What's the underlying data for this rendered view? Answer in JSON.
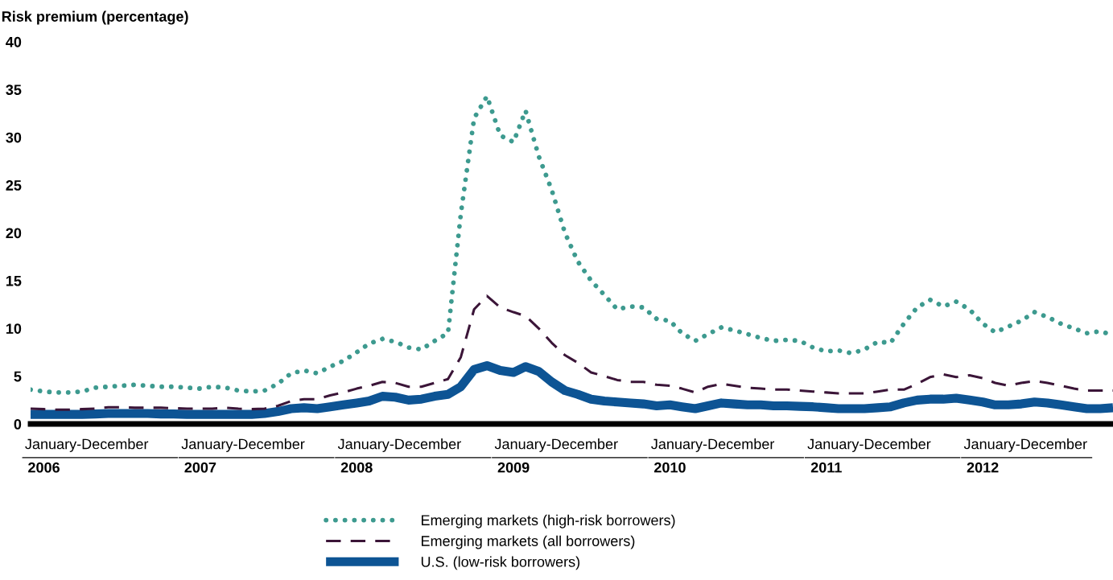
{
  "chart_data": {
    "type": "line",
    "ylabel": "Risk premium (percentage)",
    "x": [
      "2006-01",
      "2006-02",
      "2006-03",
      "2006-04",
      "2006-05",
      "2006-06",
      "2006-07",
      "2006-08",
      "2006-09",
      "2006-10",
      "2006-11",
      "2006-12",
      "2007-01",
      "2007-02",
      "2007-03",
      "2007-04",
      "2007-05",
      "2007-06",
      "2007-07",
      "2007-08",
      "2007-09",
      "2007-10",
      "2007-11",
      "2007-12",
      "2008-01",
      "2008-02",
      "2008-03",
      "2008-04",
      "2008-05",
      "2008-06",
      "2008-07",
      "2008-08",
      "2008-09",
      "2008-10",
      "2008-11",
      "2008-12",
      "2009-01",
      "2009-02",
      "2009-03",
      "2009-04",
      "2009-05",
      "2009-06",
      "2009-07",
      "2009-08",
      "2009-09",
      "2009-10",
      "2009-11",
      "2009-12",
      "2010-01",
      "2010-02",
      "2010-03",
      "2010-04",
      "2010-05",
      "2010-06",
      "2010-07",
      "2010-08",
      "2010-09",
      "2010-10",
      "2010-11",
      "2010-12",
      "2011-01",
      "2011-02",
      "2011-03",
      "2011-04",
      "2011-05",
      "2011-06",
      "2011-07",
      "2011-08",
      "2011-09",
      "2011-10",
      "2011-11",
      "2011-12",
      "2012-01",
      "2012-02",
      "2012-03",
      "2012-04",
      "2012-05",
      "2012-06",
      "2012-07",
      "2012-08",
      "2012-09",
      "2012-10",
      "2012-11",
      "2012-12"
    ],
    "series": [
      {
        "name": "Emerging markets (high-risk borrowers)",
        "color": "#3d9a8f",
        "line_style": "dotted",
        "values": [
          3.6,
          3.4,
          3.3,
          3.3,
          3.4,
          3.8,
          3.9,
          4.0,
          4.1,
          4.0,
          3.9,
          3.9,
          3.8,
          3.7,
          3.9,
          3.8,
          3.5,
          3.4,
          3.5,
          4.2,
          5.3,
          5.6,
          5.3,
          6.0,
          6.6,
          7.5,
          8.4,
          8.9,
          8.6,
          8.0,
          7.8,
          8.7,
          9.5,
          22,
          32,
          34.3,
          30.2,
          29.5,
          32.8,
          28,
          24.5,
          20,
          17,
          15,
          13.5,
          12,
          12.3,
          12.2,
          11,
          10.8,
          9.5,
          8.7,
          9.4,
          10.1,
          9.8,
          9.4,
          9.0,
          8.7,
          8.8,
          8.7,
          8.0,
          7.6,
          7.7,
          7.4,
          7.8,
          8.6,
          8.5,
          10.5,
          12.2,
          13.0,
          12.3,
          12.8,
          12.0,
          10.5,
          9.6,
          10.2,
          10.8,
          11.7,
          11.2,
          10.5,
          10.0,
          9.5,
          9.7,
          9.3
        ]
      },
      {
        "name": "Emerging markets (all borrowers)",
        "color": "#3b1538",
        "line_style": "dashed",
        "values": [
          1.6,
          1.55,
          1.5,
          1.5,
          1.55,
          1.6,
          1.75,
          1.75,
          1.7,
          1.7,
          1.7,
          1.65,
          1.6,
          1.6,
          1.6,
          1.7,
          1.6,
          1.55,
          1.6,
          1.9,
          2.4,
          2.6,
          2.6,
          3.0,
          3.3,
          3.7,
          4.0,
          4.4,
          4.3,
          3.9,
          3.9,
          4.3,
          4.7,
          7.0,
          12.0,
          13.4,
          12.2,
          11.7,
          11.3,
          10.0,
          8.5,
          7.2,
          6.4,
          5.4,
          5.0,
          4.6,
          4.4,
          4.4,
          4.1,
          4.0,
          3.7,
          3.3,
          3.9,
          4.2,
          4.0,
          3.8,
          3.7,
          3.6,
          3.6,
          3.5,
          3.4,
          3.3,
          3.2,
          3.2,
          3.2,
          3.4,
          3.6,
          3.6,
          4.2,
          4.9,
          5.2,
          4.9,
          5.1,
          4.8,
          4.3,
          4.0,
          4.3,
          4.5,
          4.3,
          4.0,
          3.7,
          3.5,
          3.5,
          3.5
        ]
      },
      {
        "name": "U.S. (low-risk borrowers)",
        "color": "#0d5494",
        "line_style": "solid",
        "values": [
          1.0,
          1.0,
          1.0,
          1.0,
          1.0,
          1.05,
          1.1,
          1.1,
          1.1,
          1.1,
          1.05,
          1.05,
          1.0,
          1.0,
          1.0,
          1.0,
          1.0,
          1.0,
          1.1,
          1.3,
          1.6,
          1.7,
          1.6,
          1.8,
          2.0,
          2.2,
          2.4,
          2.9,
          2.8,
          2.5,
          2.6,
          2.9,
          3.1,
          3.9,
          5.7,
          6.1,
          5.6,
          5.4,
          6.0,
          5.5,
          4.4,
          3.5,
          3.1,
          2.6,
          2.4,
          2.3,
          2.2,
          2.1,
          1.9,
          2.0,
          1.8,
          1.6,
          1.9,
          2.2,
          2.1,
          2.0,
          2.0,
          1.9,
          1.9,
          1.85,
          1.8,
          1.7,
          1.6,
          1.6,
          1.6,
          1.7,
          1.8,
          2.2,
          2.5,
          2.6,
          2.6,
          2.7,
          2.5,
          2.3,
          2.0,
          2.0,
          2.1,
          2.3,
          2.2,
          2.0,
          1.8,
          1.6,
          1.6,
          1.7
        ]
      }
    ],
    "xlim": [
      "2006-01",
      "2012-12"
    ],
    "xticks": [
      {
        "value": "2006-02",
        "label": "2006"
      },
      {
        "value": "2007-02",
        "label": "2007"
      },
      {
        "value": "2008-02",
        "label": "2008"
      },
      {
        "value": "2009-02",
        "label": "2009"
      },
      {
        "value": "2010-02",
        "label": "2010"
      },
      {
        "value": "2011-02",
        "label": "2011"
      },
      {
        "value": "2012-02",
        "label": "2012"
      }
    ],
    "annotations": [
      "January-December",
      "January-December",
      "January-December",
      "January-December",
      "January-December",
      "January-December",
      "January-December"
    ],
    "ylim": [
      0,
      40
    ],
    "yticks": [
      0,
      5,
      10,
      15,
      20,
      25,
      30,
      35,
      40
    ],
    "grid": false,
    "legend": "bottom",
    "marker": "none"
  }
}
